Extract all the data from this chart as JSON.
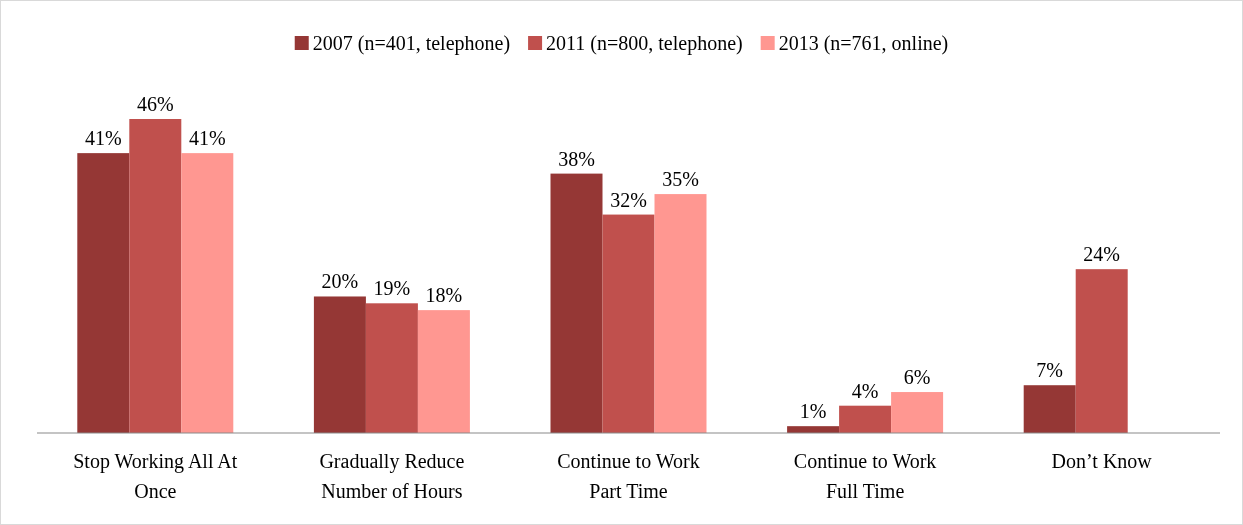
{
  "chart_data": {
    "type": "bar",
    "categories": [
      "Stop Working All At Once",
      "Gradually Reduce Number of Hours",
      "Continue to Work Part Time",
      "Continue to Work Full Time",
      "Don’t Know"
    ],
    "series": [
      {
        "name": "2007 (n=401, telephone)",
        "color": "#953735",
        "values": [
          41,
          20,
          38,
          1,
          7
        ],
        "value_labels": [
          "41%",
          "20%",
          "38%",
          "1%",
          "7%"
        ]
      },
      {
        "name": "2011 (n=800, telephone)",
        "color": "#c0504d",
        "values": [
          46,
          19,
          32,
          4,
          24
        ],
        "value_labels": [
          "46%",
          "19%",
          "32%",
          "4%",
          "24%"
        ]
      },
      {
        "name": "2013 (n=761, online)",
        "color": "#ff9791",
        "values": [
          41,
          18,
          35,
          6,
          null
        ],
        "value_labels": [
          "41%",
          "18%",
          "35%",
          "6%",
          null
        ]
      }
    ],
    "legend": "top"
  }
}
